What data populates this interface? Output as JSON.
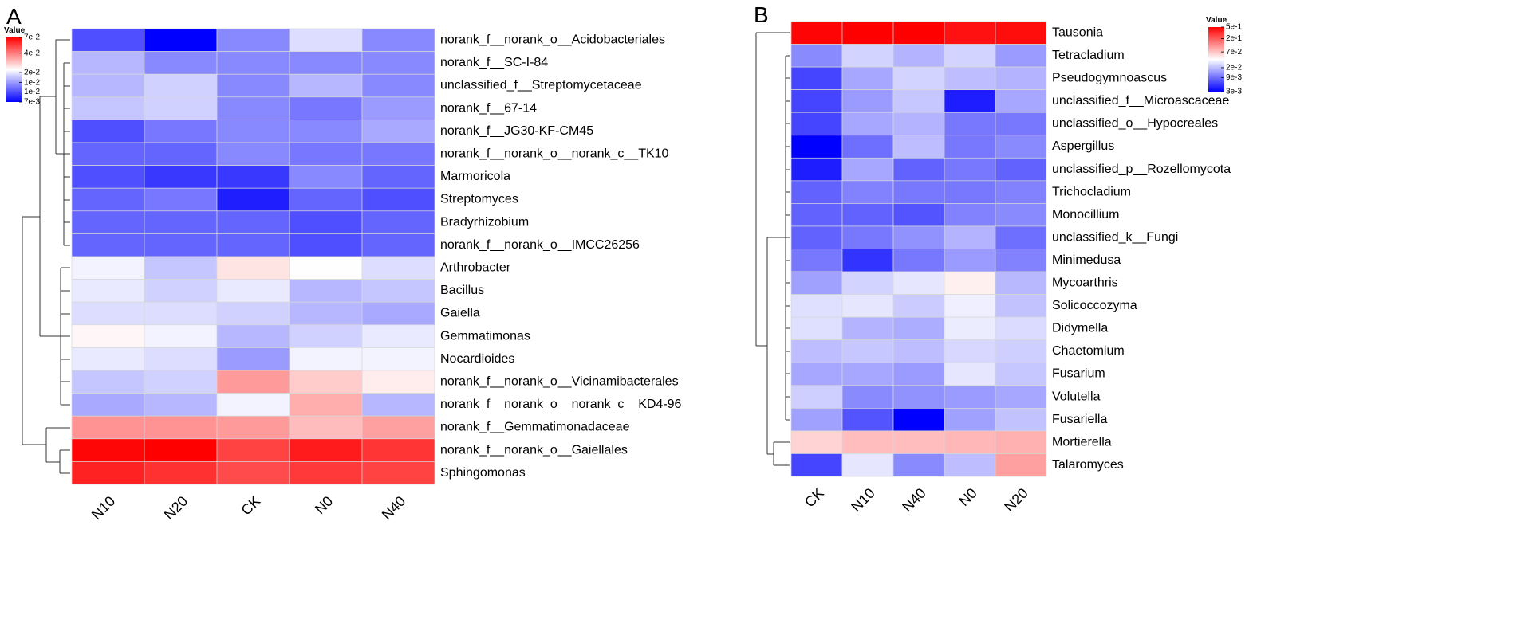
{
  "chart_data": [
    {
      "type": "heatmap",
      "panel": "A",
      "legend_title": "Value",
      "columns": [
        "N10",
        "N20",
        "CK",
        "N0",
        "N40"
      ],
      "rows": [
        "norank_f__norank_o__Acidobacteriales",
        "norank_f__SC-I-84",
        "unclassified_f__Streptomycetaceae",
        "norank_f__67-14",
        "norank_f__JG30-KF-CM45",
        "norank_f__norank_o__norank_c__TK10",
        "Marmoricola",
        "Streptomyces",
        "Bradyrhizobium",
        "norank_f__norank_o__IMCC26256",
        "Arthrobacter",
        "Bacillus",
        "Gaiella",
        "Gemmatimonas",
        "Nocardioides",
        "norank_f__norank_o__Vicinamibacterales",
        "norank_f__norank_o__norank_c__KD4-96",
        "norank_f__Gemmatimonadaceae",
        "norank_f__norank_o__Gaiellales",
        "Sphingomonas"
      ],
      "values": [
        [
          0.01,
          0.007,
          0.013,
          0.019,
          0.013
        ],
        [
          0.016,
          0.013,
          0.013,
          0.013,
          0.013
        ],
        [
          0.016,
          0.018,
          0.013,
          0.016,
          0.013
        ],
        [
          0.017,
          0.018,
          0.013,
          0.012,
          0.014
        ],
        [
          0.01,
          0.012,
          0.013,
          0.013,
          0.015
        ],
        [
          0.011,
          0.011,
          0.013,
          0.012,
          0.012
        ],
        [
          0.01,
          0.009,
          0.009,
          0.013,
          0.011
        ],
        [
          0.011,
          0.012,
          0.008,
          0.011,
          0.01
        ],
        [
          0.011,
          0.011,
          0.011,
          0.01,
          0.011
        ],
        [
          0.011,
          0.011,
          0.011,
          0.01,
          0.011
        ],
        [
          0.021,
          0.017,
          0.025,
          0.022,
          0.019
        ],
        [
          0.02,
          0.018,
          0.02,
          0.016,
          0.017
        ],
        [
          0.019,
          0.019,
          0.018,
          0.016,
          0.015
        ],
        [
          0.023,
          0.021,
          0.016,
          0.018,
          0.02
        ],
        [
          0.02,
          0.019,
          0.014,
          0.021,
          0.021
        ],
        [
          0.017,
          0.018,
          0.035,
          0.028,
          0.024
        ],
        [
          0.015,
          0.016,
          0.021,
          0.032,
          0.016
        ],
        [
          0.036,
          0.036,
          0.035,
          0.03,
          0.034
        ],
        [
          0.068,
          0.07,
          0.052,
          0.062,
          0.055
        ],
        [
          0.06,
          0.056,
          0.05,
          0.054,
          0.052
        ]
      ],
      "colorbar_lim": [
        0.007,
        0.07
      ],
      "log_scale": true,
      "colors": [
        "#0000ff",
        "#ffffff",
        "#ff0000"
      ],
      "colorbar_ticks": [
        {
          "value": 0.07,
          "label": "7e-2"
        },
        {
          "value": 0.04,
          "label": "4e-2"
        },
        {
          "value": 0.02,
          "label": "2e-2"
        },
        {
          "value": 0.014,
          "label": "1e-2"
        },
        {
          "value": 0.01,
          "label": "1e-2"
        },
        {
          "value": 0.007,
          "label": "7e-3"
        }
      ]
    },
    {
      "type": "heatmap",
      "panel": "B",
      "legend_title": "Value",
      "columns": [
        "CK",
        "N10",
        "N40",
        "N0",
        "N20"
      ],
      "rows": [
        "Tausonia",
        "Tetracladium",
        "Pseudogymnoascus",
        "unclassified_f__Microascaceae",
        "unclassified_o__Hypocreales",
        "Aspergillus",
        "unclassified_p__Rozellomycota",
        "Trichocladium",
        "Monocillium",
        "unclassified_k__Fungi",
        "Minimedusa",
        "Mycoarthris",
        "Solicoccozyma",
        "Didymella",
        "Chaetomium",
        "Fusarium",
        "Volutella",
        "Fusariella",
        "Mortierella",
        "Talaromyces"
      ],
      "values": [
        [
          0.48,
          0.5,
          0.5,
          0.42,
          0.44
        ],
        [
          0.012,
          0.025,
          0.018,
          0.025,
          0.014
        ],
        [
          0.006,
          0.016,
          0.025,
          0.02,
          0.018
        ],
        [
          0.006,
          0.014,
          0.022,
          0.004,
          0.016
        ],
        [
          0.006,
          0.016,
          0.018,
          0.01,
          0.01
        ],
        [
          0.003,
          0.009,
          0.02,
          0.01,
          0.012
        ],
        [
          0.004,
          0.016,
          0.008,
          0.01,
          0.008
        ],
        [
          0.008,
          0.011,
          0.01,
          0.01,
          0.011
        ],
        [
          0.008,
          0.008,
          0.007,
          0.011,
          0.012
        ],
        [
          0.008,
          0.01,
          0.013,
          0.018,
          0.009
        ],
        [
          0.01,
          0.005,
          0.01,
          0.014,
          0.011
        ],
        [
          0.015,
          0.025,
          0.03,
          0.045,
          0.019
        ],
        [
          0.028,
          0.03,
          0.023,
          0.033,
          0.021
        ],
        [
          0.028,
          0.018,
          0.017,
          0.032,
          0.027
        ],
        [
          0.02,
          0.022,
          0.02,
          0.026,
          0.024
        ],
        [
          0.016,
          0.016,
          0.014,
          0.03,
          0.022
        ],
        [
          0.024,
          0.012,
          0.013,
          0.014,
          0.016
        ],
        [
          0.015,
          0.007,
          0.003,
          0.015,
          0.021
        ],
        [
          0.06,
          0.075,
          0.075,
          0.08,
          0.085
        ],
        [
          0.006,
          0.03,
          0.012,
          0.02,
          0.1
        ]
      ],
      "colorbar_lim": [
        0.003,
        0.5
      ],
      "log_scale": true,
      "colors": [
        "#0000ff",
        "#ffffff",
        "#ff0000"
      ],
      "colorbar_ticks": [
        {
          "value": 0.5,
          "label": "5e-1"
        },
        {
          "value": 0.2,
          "label": "2e-1"
        },
        {
          "value": 0.07,
          "label": "7e-2"
        },
        {
          "value": 0.02,
          "label": "2e-2"
        },
        {
          "value": 0.009,
          "label": "9e-3"
        },
        {
          "value": 0.003,
          "label": "3e-3"
        }
      ]
    }
  ]
}
